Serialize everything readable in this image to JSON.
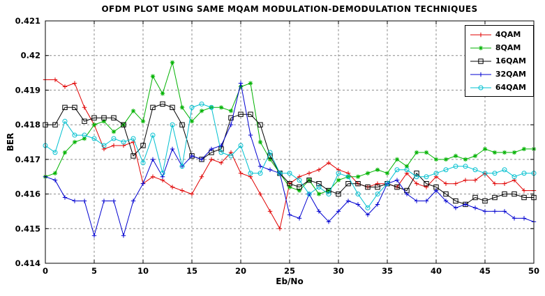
{
  "chart_data": {
    "type": "line",
    "title": "OFDM PLOT USING SAME MQAM MODULATION-DEMODULATION TECHNIQUES",
    "xlabel": "Eb/No",
    "ylabel": "BER",
    "xlim": [
      0,
      50
    ],
    "ylim": [
      0.414,
      0.421
    ],
    "grid": true,
    "legend_position": "top-right",
    "x_ticks": [
      0,
      5,
      10,
      15,
      20,
      25,
      30,
      35,
      40,
      45,
      50
    ],
    "x_tick_labels": [
      "0",
      "5",
      "10",
      "15",
      "20",
      "25",
      "30",
      "35",
      "40",
      "45",
      "50"
    ],
    "y_ticks": [
      0.414,
      0.415,
      0.416,
      0.417,
      0.418,
      0.419,
      0.42,
      0.421
    ],
    "y_tick_labels": [
      "0.414",
      "0.415",
      "0.416",
      "0.417",
      "0.418",
      "0.419",
      "0.42",
      "0.421"
    ],
    "x": [
      0,
      1,
      2,
      3,
      4,
      5,
      6,
      7,
      8,
      9,
      10,
      11,
      12,
      13,
      14,
      15,
      16,
      17,
      18,
      19,
      20,
      21,
      22,
      23,
      24,
      25,
      26,
      27,
      28,
      29,
      30,
      31,
      32,
      33,
      34,
      35,
      36,
      37,
      38,
      39,
      40,
      41,
      42,
      43,
      44,
      45,
      46,
      47,
      48,
      49,
      50
    ],
    "series": [
      {
        "name": "4QAM",
        "color": "#e00000",
        "marker": "plus",
        "values": [
          0.4193,
          0.4193,
          0.4191,
          0.4192,
          0.4185,
          0.418,
          0.4173,
          0.4174,
          0.4174,
          0.4175,
          0.4163,
          0.4165,
          0.4164,
          0.4162,
          0.4161,
          0.416,
          0.4165,
          0.417,
          0.4169,
          0.4172,
          0.4166,
          0.4165,
          0.416,
          0.4155,
          0.415,
          0.4163,
          0.4165,
          0.4166,
          0.4167,
          0.4169,
          0.4167,
          0.4166,
          0.4163,
          0.4162,
          0.4163,
          0.4163,
          0.4162,
          0.4166,
          0.4163,
          0.4162,
          0.4165,
          0.4163,
          0.4163,
          0.4164,
          0.4164,
          0.4166,
          0.4163,
          0.4163,
          0.4164,
          0.4161,
          0.4161
        ]
      },
      {
        "name": "8QAM",
        "color": "#00b200",
        "marker": "star",
        "values": [
          0.4165,
          0.4166,
          0.4172,
          0.4175,
          0.4176,
          0.418,
          0.4181,
          0.4178,
          0.418,
          0.4184,
          0.4181,
          0.4194,
          0.4189,
          0.4198,
          0.4185,
          0.4181,
          0.4184,
          0.4185,
          0.4185,
          0.4184,
          0.4191,
          0.4192,
          0.4175,
          0.417,
          0.4166,
          0.4162,
          0.4161,
          0.4164,
          0.416,
          0.4161,
          0.4164,
          0.4165,
          0.4165,
          0.4166,
          0.4167,
          0.4166,
          0.417,
          0.4168,
          0.4172,
          0.4172,
          0.417,
          0.417,
          0.4171,
          0.417,
          0.4171,
          0.4173,
          0.4172,
          0.4172,
          0.4172,
          0.4173,
          0.4173
        ]
      },
      {
        "name": "16QAM",
        "color": "#000000",
        "marker": "square",
        "values": [
          0.418,
          0.418,
          0.4185,
          0.4185,
          0.4181,
          0.4182,
          0.4182,
          0.4182,
          0.418,
          0.4171,
          0.4174,
          0.4185,
          0.4186,
          0.4185,
          0.418,
          0.4171,
          0.417,
          0.4172,
          0.4173,
          0.4182,
          0.4183,
          0.4183,
          0.418,
          0.4171,
          0.4166,
          0.4163,
          0.4162,
          0.4164,
          0.4163,
          0.4161,
          0.416,
          0.4163,
          0.4163,
          0.4162,
          0.4162,
          0.4163,
          0.4162,
          0.4161,
          0.4166,
          0.4163,
          0.4162,
          0.416,
          0.4158,
          0.4157,
          0.4159,
          0.4158,
          0.4159,
          0.416,
          0.416,
          0.4159,
          0.4159
        ]
      },
      {
        "name": "32QAM",
        "color": "#0000d0",
        "marker": "plus",
        "values": [
          0.4165,
          0.4164,
          0.4159,
          0.4158,
          0.4158,
          0.4148,
          0.4158,
          0.4158,
          0.4148,
          0.4158,
          0.4163,
          0.417,
          0.4165,
          0.4173,
          0.4168,
          0.4171,
          0.417,
          0.4173,
          0.4174,
          0.418,
          0.4192,
          0.4177,
          0.4168,
          0.4167,
          0.4166,
          0.4154,
          0.4153,
          0.416,
          0.4155,
          0.4152,
          0.4155,
          0.4158,
          0.4157,
          0.4154,
          0.4157,
          0.4163,
          0.4164,
          0.416,
          0.4158,
          0.4158,
          0.4161,
          0.4158,
          0.4156,
          0.4157,
          0.4156,
          0.4155,
          0.4155,
          0.4155,
          0.4153,
          0.4153,
          0.4152
        ]
      },
      {
        "name": "64QAM",
        "color": "#00c0d0",
        "marker": "circle",
        "values": [
          0.4174,
          0.4172,
          0.4181,
          0.4177,
          0.4177,
          0.4176,
          0.4174,
          0.4176,
          0.4175,
          0.4176,
          0.4169,
          0.4177,
          0.4166,
          0.418,
          0.4168,
          0.4185,
          0.4186,
          0.4185,
          0.4172,
          0.4171,
          0.4174,
          0.4166,
          0.4166,
          0.4172,
          0.4166,
          0.4166,
          0.4164,
          0.416,
          0.4162,
          0.416,
          0.4166,
          0.4165,
          0.416,
          0.4156,
          0.416,
          0.4163,
          0.4167,
          0.4167,
          0.4165,
          0.4165,
          0.4166,
          0.4167,
          0.4168,
          0.4168,
          0.4167,
          0.4166,
          0.4166,
          0.4167,
          0.4165,
          0.4166,
          0.4166
        ]
      }
    ]
  }
}
